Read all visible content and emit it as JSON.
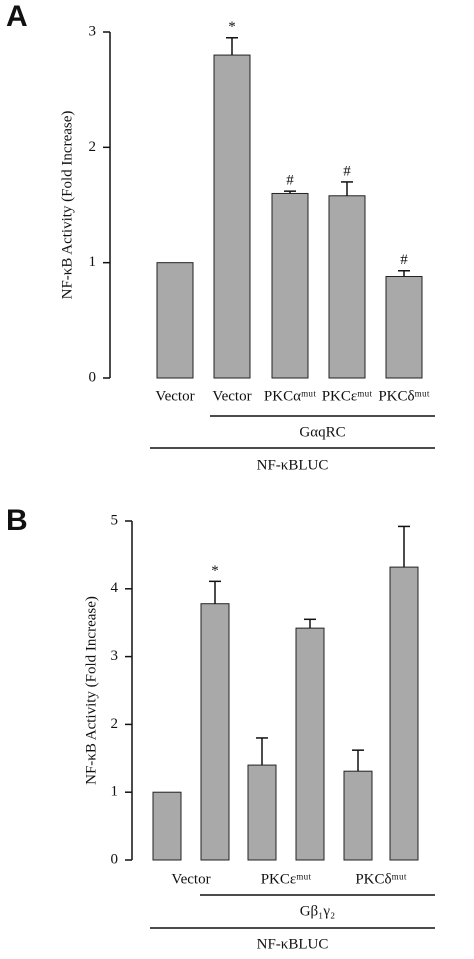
{
  "chart_data": [
    {
      "type": "bar",
      "panel_label": "A",
      "ylabel": "NF-κB Activity  (Fold Increase)",
      "categories": [
        "Vector",
        "Vector",
        "PKCαᵐᵘᵗ",
        "PKCεᵐᵘᵗ",
        "PKCδᵐᵘᵗ"
      ],
      "values": [
        1.0,
        2.8,
        1.6,
        1.58,
        0.88
      ],
      "errors": [
        null,
        0.15,
        0.02,
        0.12,
        0.05
      ],
      "markers": [
        null,
        "*",
        "#",
        "#",
        "#"
      ],
      "color": "#a9a9a9",
      "group_labels": [
        "GαqRC",
        "NF-κBLUC"
      ],
      "ylim": [
        0,
        3
      ],
      "yticks": [
        0,
        1,
        2,
        3
      ]
    },
    {
      "type": "bar",
      "panel_label": "B",
      "ylabel": "NF-κB Activity  (Fold Increase)",
      "categories": [
        null,
        "Vector",
        null,
        "PKCεᵐᵘᵗ",
        null,
        "PKCδᵐᵘᵗ"
      ],
      "values": [
        1.0,
        3.78,
        1.4,
        3.42,
        1.31,
        4.32
      ],
      "errors": [
        null,
        0.33,
        0.4,
        0.13,
        0.31,
        0.6
      ],
      "markers": [
        null,
        "*",
        null,
        null,
        null,
        null
      ],
      "color": "#a9a9a9",
      "group_labels": [
        "Gβ₁γ₂",
        "NF-κBLUC"
      ],
      "ylim": [
        0,
        5
      ],
      "yticks": [
        0,
        1,
        2,
        3,
        4,
        5
      ]
    }
  ]
}
